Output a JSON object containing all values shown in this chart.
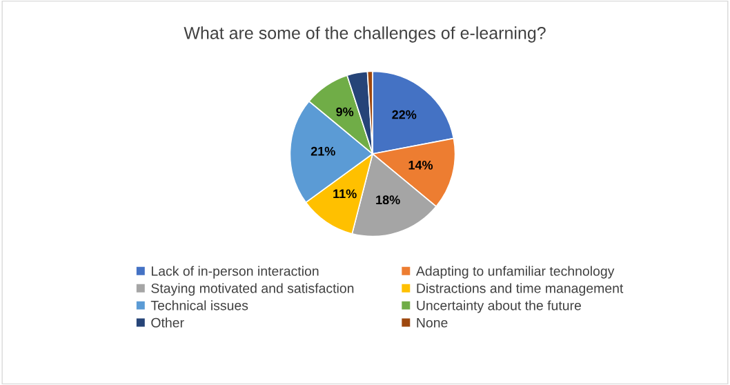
{
  "chart_data": {
    "type": "pie",
    "title": "What are some of the challenges of e-learning?",
    "categories": [
      "Lack of in-person interaction",
      "Adapting to unfamiliar technology",
      "Staying motivated and satisfaction",
      "Distractions and time management",
      "Technical issues",
      "Uncertainty about the future",
      "Other",
      "None"
    ],
    "values": [
      22,
      14,
      18,
      11,
      21,
      9,
      4,
      1
    ],
    "value_labels": [
      "22%",
      "14%",
      "18%",
      "11%",
      "21%",
      "9%",
      null,
      null
    ],
    "colors": [
      "#4472c4",
      "#ed7d31",
      "#a5a5a5",
      "#ffc000",
      "#5b9bd5",
      "#70ad47",
      "#264478",
      "#9e480e"
    ],
    "legend": "bottom"
  }
}
